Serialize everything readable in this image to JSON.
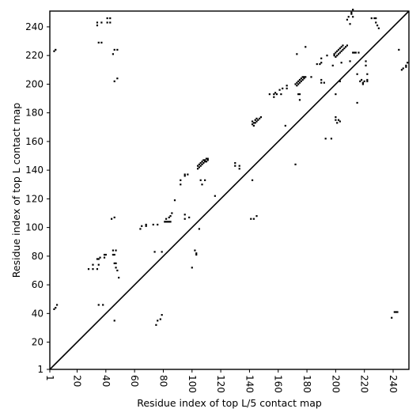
{
  "chart_data": {
    "type": "scatter",
    "title": "",
    "xlabel": "Residue index of top L/5 contact map",
    "ylabel": "Residue index of top L contact map",
    "xlim": [
      1,
      251
    ],
    "ylim": [
      1,
      251
    ],
    "xticks": [
      1,
      20,
      40,
      60,
      80,
      100,
      120,
      140,
      160,
      180,
      200,
      220,
      240
    ],
    "yticks": [
      1,
      20,
      40,
      60,
      80,
      100,
      120,
      140,
      160,
      180,
      200,
      220,
      240
    ],
    "x_tick_rotation": -90,
    "grid": false,
    "legend": "none",
    "marker": "square",
    "marker_color": "#000000",
    "diagonal_color": "#000000",
    "diagonal": [
      [
        1,
        1
      ],
      [
        251,
        251
      ]
    ],
    "series": [
      {
        "name": "",
        "points": [
          [
            4,
            223
          ],
          [
            5,
            224
          ],
          [
            34,
            243
          ],
          [
            34,
            241
          ],
          [
            37,
            243
          ],
          [
            41,
            246
          ],
          [
            41,
            243
          ],
          [
            43,
            246
          ],
          [
            43,
            243
          ],
          [
            35,
            229
          ],
          [
            37,
            229
          ],
          [
            45,
            221
          ],
          [
            46,
            224
          ],
          [
            48,
            224
          ],
          [
            46,
            202
          ],
          [
            48,
            204
          ],
          [
            28,
            71
          ],
          [
            31,
            71
          ],
          [
            34,
            71
          ],
          [
            35,
            74
          ],
          [
            34,
            78
          ],
          [
            35,
            78
          ],
          [
            36,
            79
          ],
          [
            39,
            79
          ],
          [
            39,
            81
          ],
          [
            40,
            81
          ],
          [
            31,
            74
          ],
          [
            45,
            81
          ],
          [
            46,
            81
          ],
          [
            45,
            84
          ],
          [
            47,
            84
          ],
          [
            46,
            75
          ],
          [
            47,
            75
          ],
          [
            47,
            72
          ],
          [
            48,
            70
          ],
          [
            49,
            65
          ],
          [
            35,
            46
          ],
          [
            38,
            46
          ],
          [
            5,
            44
          ],
          [
            6,
            46
          ],
          [
            4,
            43
          ],
          [
            46,
            35
          ],
          [
            44,
            106
          ],
          [
            46,
            107
          ],
          [
            64,
            99
          ],
          [
            65,
            101
          ],
          [
            68,
            101
          ],
          [
            68,
            102
          ],
          [
            73,
            102
          ],
          [
            76,
            102
          ],
          [
            74,
            83
          ],
          [
            79,
            83
          ],
          [
            75,
            32
          ],
          [
            76,
            35
          ],
          [
            78,
            36
          ],
          [
            79,
            39
          ],
          [
            81,
            104
          ],
          [
            82,
            104
          ],
          [
            83,
            104
          ],
          [
            84,
            104
          ],
          [
            85,
            104
          ],
          [
            82,
            106
          ],
          [
            84,
            107
          ],
          [
            85,
            108
          ],
          [
            86,
            110
          ],
          [
            88,
            119
          ],
          [
            92,
            130
          ],
          [
            92,
            133
          ],
          [
            95,
            136
          ],
          [
            95,
            137
          ],
          [
            97,
            137
          ],
          [
            95,
            106
          ],
          [
            95,
            109
          ],
          [
            98,
            107
          ],
          [
            100,
            72
          ],
          [
            102,
            84
          ],
          [
            103,
            82
          ],
          [
            103,
            81
          ],
          [
            105,
            99
          ],
          [
            106,
            133
          ],
          [
            107,
            130
          ],
          [
            109,
            133
          ],
          [
            104,
            141
          ],
          [
            104,
            143
          ],
          [
            105,
            142
          ],
          [
            105,
            144
          ],
          [
            106,
            143
          ],
          [
            106,
            145
          ],
          [
            107,
            144
          ],
          [
            107,
            146
          ],
          [
            108,
            145
          ],
          [
            108,
            147
          ],
          [
            109,
            146
          ],
          [
            109,
            147
          ],
          [
            110,
            146
          ],
          [
            110,
            148
          ],
          [
            111,
            147
          ],
          [
            111,
            148
          ],
          [
            116,
            122
          ],
          [
            130,
            143
          ],
          [
            130,
            145
          ],
          [
            133,
            141
          ],
          [
            133,
            143
          ],
          [
            142,
            133
          ],
          [
            141,
            106
          ],
          [
            143,
            106
          ],
          [
            145,
            108
          ],
          [
            142,
            172
          ],
          [
            142,
            174
          ],
          [
            143,
            171
          ],
          [
            143,
            173
          ],
          [
            144,
            173
          ],
          [
            144,
            175
          ],
          [
            145,
            174
          ],
          [
            145,
            176
          ],
          [
            146,
            175
          ],
          [
            147,
            176
          ],
          [
            148,
            177
          ],
          [
            154,
            193
          ],
          [
            157,
            191
          ],
          [
            157,
            193
          ],
          [
            158,
            194
          ],
          [
            159,
            193
          ],
          [
            161,
            196
          ],
          [
            162,
            193
          ],
          [
            163,
            197
          ],
          [
            165,
            171
          ],
          [
            166,
            197
          ],
          [
            166,
            199
          ],
          [
            172,
            144
          ],
          [
            173,
            221
          ],
          [
            173,
            199
          ],
          [
            174,
            193
          ],
          [
            175,
            193
          ],
          [
            175,
            189
          ],
          [
            172,
            200
          ],
          [
            173,
            201
          ],
          [
            174,
            200
          ],
          [
            174,
            202
          ],
          [
            175,
            201
          ],
          [
            175,
            203
          ],
          [
            176,
            202
          ],
          [
            176,
            204
          ],
          [
            177,
            203
          ],
          [
            177,
            205
          ],
          [
            178,
            204
          ],
          [
            178,
            205
          ],
          [
            179,
            205
          ],
          [
            179,
            226
          ],
          [
            183,
            205
          ],
          [
            187,
            214
          ],
          [
            189,
            214
          ],
          [
            190,
            218
          ],
          [
            190,
            215
          ],
          [
            190,
            203
          ],
          [
            190,
            201
          ],
          [
            192,
            201
          ],
          [
            193,
            162
          ],
          [
            194,
            220
          ],
          [
            197,
            162
          ],
          [
            198,
            213
          ],
          [
            199,
            221
          ],
          [
            199,
            220
          ],
          [
            200,
            219
          ],
          [
            200,
            222
          ],
          [
            201,
            220
          ],
          [
            201,
            223
          ],
          [
            202,
            221
          ],
          [
            202,
            224
          ],
          [
            203,
            222
          ],
          [
            203,
            225
          ],
          [
            204,
            223
          ],
          [
            204,
            226
          ],
          [
            205,
            224
          ],
          [
            205,
            227
          ],
          [
            206,
            225
          ],
          [
            207,
            226
          ],
          [
            208,
            227
          ],
          [
            208,
            245
          ],
          [
            209,
            247
          ],
          [
            210,
            242
          ],
          [
            210,
            216
          ],
          [
            200,
            193
          ],
          [
            200,
            177
          ],
          [
            200,
            175
          ],
          [
            201,
            173
          ],
          [
            202,
            175
          ],
          [
            203,
            174
          ],
          [
            203,
            202
          ],
          [
            204,
            215
          ],
          [
            211,
            250
          ],
          [
            211,
            249
          ],
          [
            212,
            252
          ],
          [
            212,
            247
          ],
          [
            212,
            222
          ],
          [
            213,
            222
          ],
          [
            214,
            222
          ],
          [
            215,
            207
          ],
          [
            215,
            187
          ],
          [
            216,
            222
          ],
          [
            217,
            202
          ],
          [
            218,
            203
          ],
          [
            219,
            201
          ],
          [
            219,
            200
          ],
          [
            220,
            202
          ],
          [
            221,
            213
          ],
          [
            221,
            216
          ],
          [
            222,
            207
          ],
          [
            222,
            203
          ],
          [
            222,
            202
          ],
          [
            225,
            246
          ],
          [
            227,
            246
          ],
          [
            228,
            246
          ],
          [
            228,
            243
          ],
          [
            229,
            241
          ],
          [
            230,
            239
          ],
          [
            239,
            37
          ],
          [
            241,
            41
          ],
          [
            242,
            41
          ],
          [
            243,
            41
          ],
          [
            244,
            224
          ],
          [
            246,
            210
          ],
          [
            247,
            211
          ],
          [
            249,
            213
          ],
          [
            249,
            212
          ],
          [
            250,
            215
          ]
        ]
      }
    ]
  }
}
